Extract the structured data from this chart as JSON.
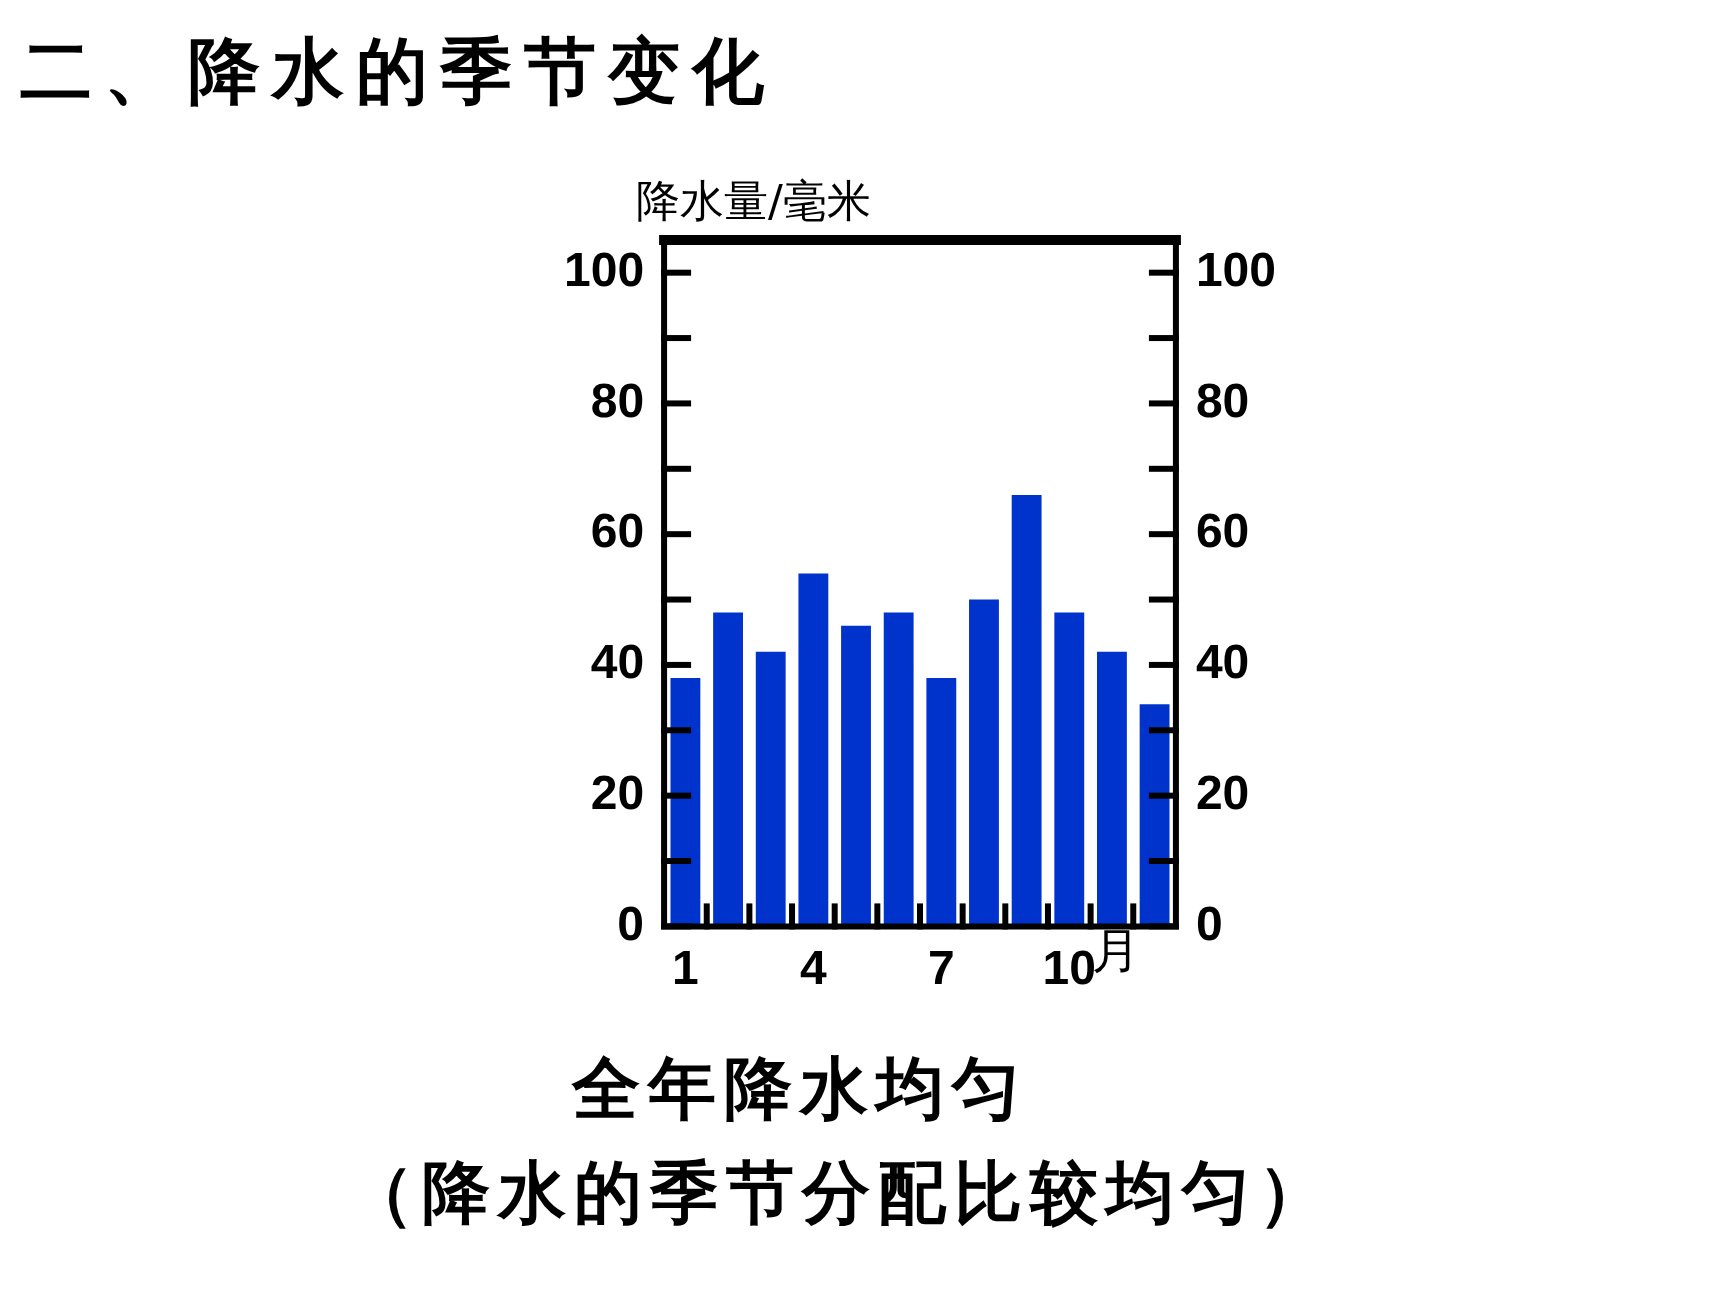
{
  "chart_data": {
    "type": "bar",
    "title": "二、降水的季节变化",
    "ylabel": "降水量/毫米",
    "xlabel": "月",
    "categories": [
      "1",
      null,
      null,
      "4",
      null,
      null,
      "7",
      null,
      null,
      "10",
      null,
      null
    ],
    "values": [
      38,
      48,
      42,
      54,
      46,
      48,
      38,
      50,
      66,
      48,
      42,
      34
    ],
    "color": "#0033cc",
    "ylim": [
      0,
      105
    ],
    "yticks": [
      0,
      {
        "value": 10,
        "label": null
      },
      20,
      {
        "value": 30,
        "label": null
      },
      40,
      {
        "value": 50,
        "label": null
      },
      60,
      {
        "value": 70,
        "label": null
      },
      80,
      {
        "value": 90,
        "label": null
      },
      100
    ],
    "y2lim": [
      0,
      105
    ],
    "y2ticks": [
      0,
      {
        "value": 10,
        "label": null
      },
      20,
      {
        "value": 30,
        "label": null
      },
      40,
      {
        "value": 50,
        "label": null
      },
      60,
      {
        "value": 70,
        "label": null
      },
      80,
      {
        "value": 90,
        "label": null
      },
      100
    ],
    "annotations": [
      "全年降水均匀",
      "（降水的季节分配比较均匀）"
    ]
  }
}
